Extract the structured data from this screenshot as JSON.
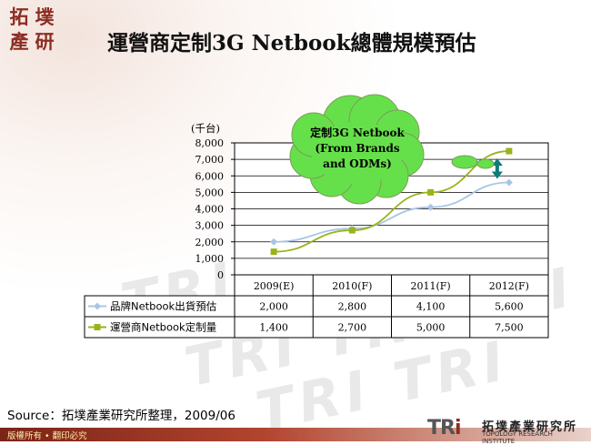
{
  "header": {
    "logo_chars": [
      "拓",
      "墣",
      "產",
      "研"
    ],
    "title": "運營商定制3G Netbook總體規模預估"
  },
  "chart_data": {
    "type": "line",
    "unit_label": "(千台)",
    "categories": [
      "2009(E)",
      "2010(F)",
      "2011(F)",
      "2012(F)"
    ],
    "ylim": [
      0,
      8000
    ],
    "yticks": [
      "0",
      "1,000",
      "2,000",
      "3,000",
      "4,000",
      "5,000",
      "6,000",
      "7,000",
      "8,000"
    ],
    "grid": true,
    "series": [
      {
        "name": "品牌Netbook出貨預估",
        "values": [
          2000,
          2800,
          4100,
          5600
        ],
        "display": [
          "2,000",
          "2,800",
          "4,100",
          "5,600"
        ],
        "color": "#a9c4e6",
        "marker": "diamond"
      },
      {
        "name": "運營商Netbook定制量",
        "values": [
          1400,
          2700,
          5000,
          7500
        ],
        "display": [
          "1,400",
          "2,700",
          "5,000",
          "7,500"
        ],
        "color": "#99b31a",
        "marker": "square"
      }
    ],
    "callout": [
      "定制3G Netbook",
      "(From Brands",
      "and ODMs)"
    ],
    "callout_color": "#66e04a",
    "arrow_color": "#0e7b7b"
  },
  "footer": {
    "source": "Source：拓墣產業研究所整理，2009/06",
    "copyright": "版權所有 • 翻印必究",
    "org_mark_tri": "TR",
    "org_mark_i": "i",
    "org_cn": "拓墣產業研究所",
    "org_en": "TOPOLOGY RESEARCH INSTITUTE"
  }
}
